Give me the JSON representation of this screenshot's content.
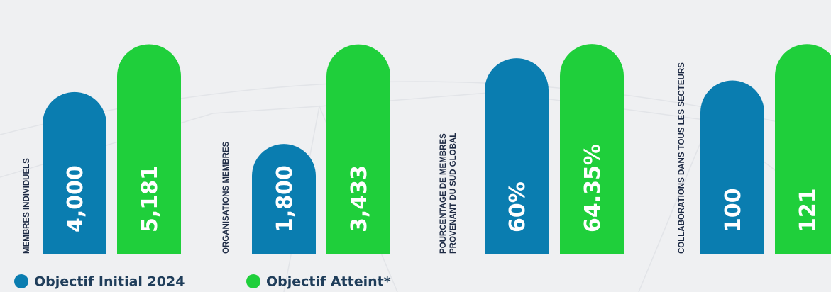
{
  "legend": [
    {
      "label": "Objectif Initial 2024",
      "color": "#0a7db0"
    },
    {
      "label": "Objectif Atteint*",
      "color": "#1fcf3b"
    }
  ],
  "chart_data": [
    {
      "type": "bar",
      "title": [
        "MEMBRES INDIVIDUELS"
      ],
      "values": [
        4000,
        5181
      ],
      "value_labels": [
        "4,000",
        "5,181"
      ],
      "ylim": [
        0,
        5400
      ]
    },
    {
      "type": "bar",
      "title": [
        "ORGANISATIONS MEMBRES"
      ],
      "values": [
        1800,
        3433
      ],
      "value_labels": [
        "1,800",
        "3,433"
      ],
      "ylim": [
        0,
        3580
      ]
    },
    {
      "type": "bar",
      "title": [
        "POURCENTAGE DE MEMBRES",
        "PROVENANT DU SUD GLOBAL"
      ],
      "values": [
        60,
        64.35
      ],
      "value_labels": [
        "60%",
        "64.35%"
      ],
      "ylim": [
        0,
        67
      ]
    },
    {
      "type": "bar",
      "title": [
        "COLLABORATIONS DANS TOUS LES SECTEURS"
      ],
      "values": [
        100,
        121
      ],
      "value_labels": [
        "100",
        "121"
      ],
      "ylim": [
        0,
        126
      ]
    }
  ]
}
